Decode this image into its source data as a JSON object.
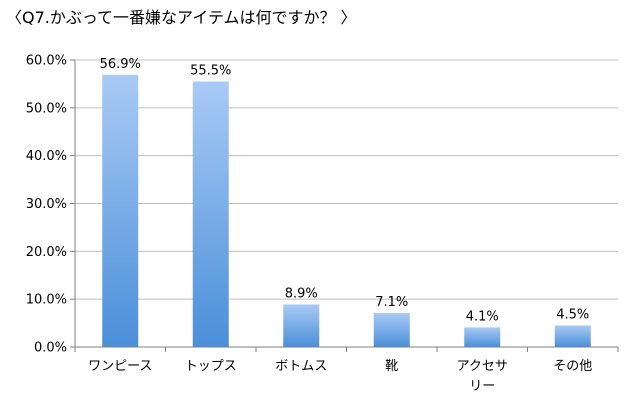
{
  "chart_data": {
    "type": "bar",
    "title": "〈Q7.かぶって一番嫌なアイテムは何ですか？ 〉",
    "categories": [
      "ワンピース",
      "トップス",
      "ボトムス",
      "靴",
      "アクセサリー",
      "その他"
    ],
    "category_lines": [
      [
        "ワンピース"
      ],
      [
        "トップス"
      ],
      [
        "ボトムス"
      ],
      [
        "靴"
      ],
      [
        "アクセサ",
        "リー"
      ],
      [
        "その他"
      ]
    ],
    "series": [
      {
        "values": [
          56.9,
          55.5,
          8.9,
          7.1,
          4.1,
          4.5
        ]
      }
    ],
    "data_labels": [
      "56.9%",
      "55.5%",
      "8.9%",
      "7.1%",
      "4.1%",
      "4.5%"
    ],
    "ylim": [
      0,
      60
    ],
    "yticks": [
      0,
      10,
      20,
      30,
      40,
      50,
      60
    ],
    "ytick_labels": [
      "0.0%",
      "10.0%",
      "20.0%",
      "30.0%",
      "40.0%",
      "50.0%",
      "60.0%"
    ],
    "xlabel": "",
    "ylabel": "",
    "grid": true,
    "legend": "none",
    "colors": {
      "bar_top": "#a9caf5",
      "bar_bottom": "#4a8fd9",
      "grid": "#c0c0c0",
      "axis": "#808080"
    }
  }
}
